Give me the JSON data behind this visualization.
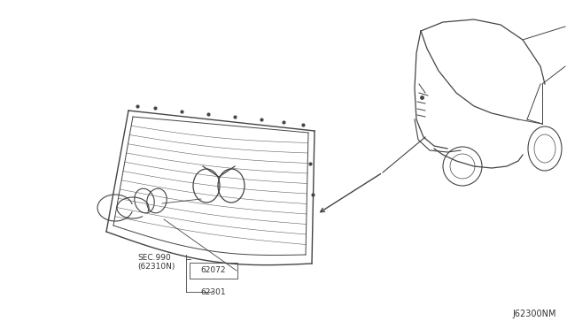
{
  "bg_color": "#ffffff",
  "diagram_number": "J62300NM",
  "line_color": "#444444",
  "text_color": "#333333",
  "font_size_label": 6.5,
  "font_size_diagram": 7
}
